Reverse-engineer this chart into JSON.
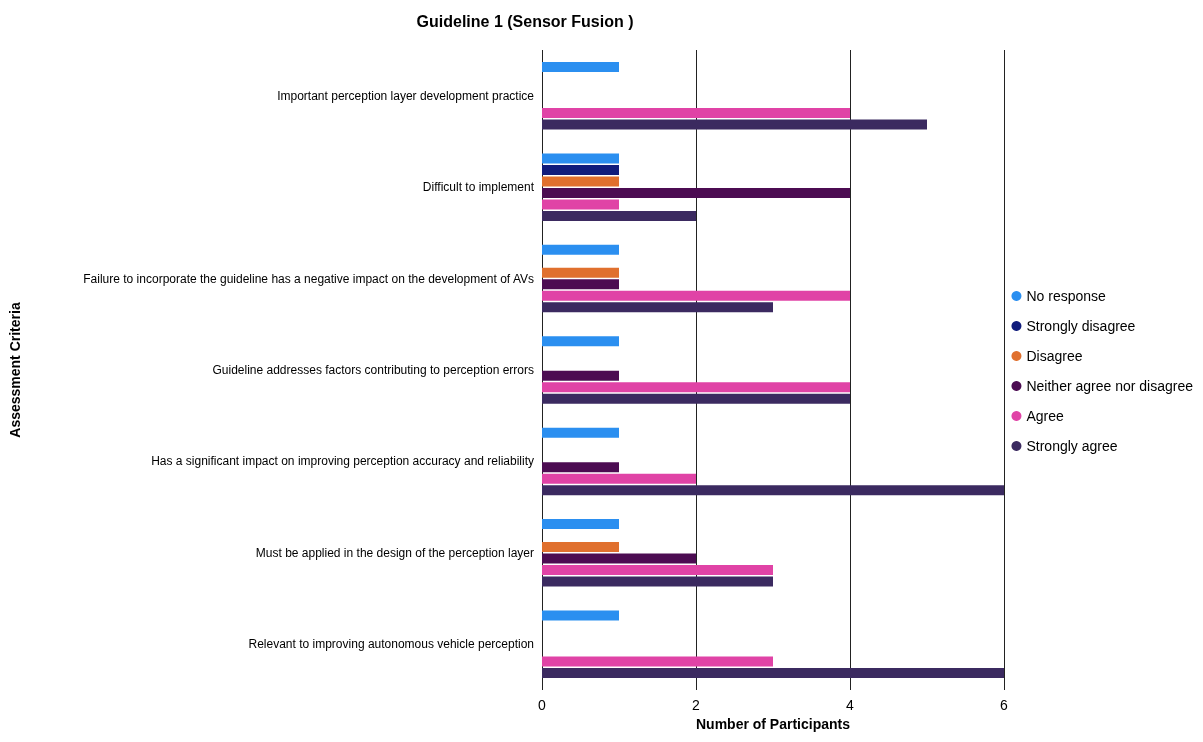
{
  "chart_data": {
    "type": "bar",
    "orientation": "horizontal",
    "title": "Guideline 1 (Sensor Fusion )",
    "xlabel": "Number of Participants",
    "ylabel": "Assessment Criteria",
    "categories": [
      "Important perception layer development practice",
      "Difficult to implement",
      "Failure to incorporate the guideline has a negative impact on the development of AVs",
      "Guideline addresses factors contributing to perception errors",
      "Has a significant impact on improving perception accuracy and reliability",
      "Must be applied in the design of the perception layer",
      "Relevant to improving autonomous vehicle perception"
    ],
    "series": [
      {
        "name": "No response",
        "color": "#2b8ff0",
        "values": [
          1,
          1,
          1,
          1,
          1,
          1,
          1
        ]
      },
      {
        "name": "Strongly disagree",
        "color": "#101c7c",
        "values": [
          0,
          1,
          0,
          0,
          0,
          0,
          0
        ]
      },
      {
        "name": "Disagree",
        "color": "#e0702e",
        "values": [
          0,
          1,
          1,
          0,
          0,
          1,
          0
        ]
      },
      {
        "name": "Neither agree nor disagree",
        "color": "#4c0c52",
        "values": [
          0,
          4,
          1,
          1,
          1,
          2,
          0
        ]
      },
      {
        "name": "Agree",
        "color": "#e043a6",
        "values": [
          4,
          1,
          4,
          4,
          2,
          3,
          3
        ]
      },
      {
        "name": "Strongly agree",
        "color": "#3b2a60",
        "values": [
          5,
          2,
          3,
          4,
          6,
          3,
          6
        ]
      }
    ],
    "xlim": [
      0,
      6
    ],
    "xticks": [
      0,
      2,
      4,
      6
    ],
    "grid": "x",
    "legend": "right"
  }
}
